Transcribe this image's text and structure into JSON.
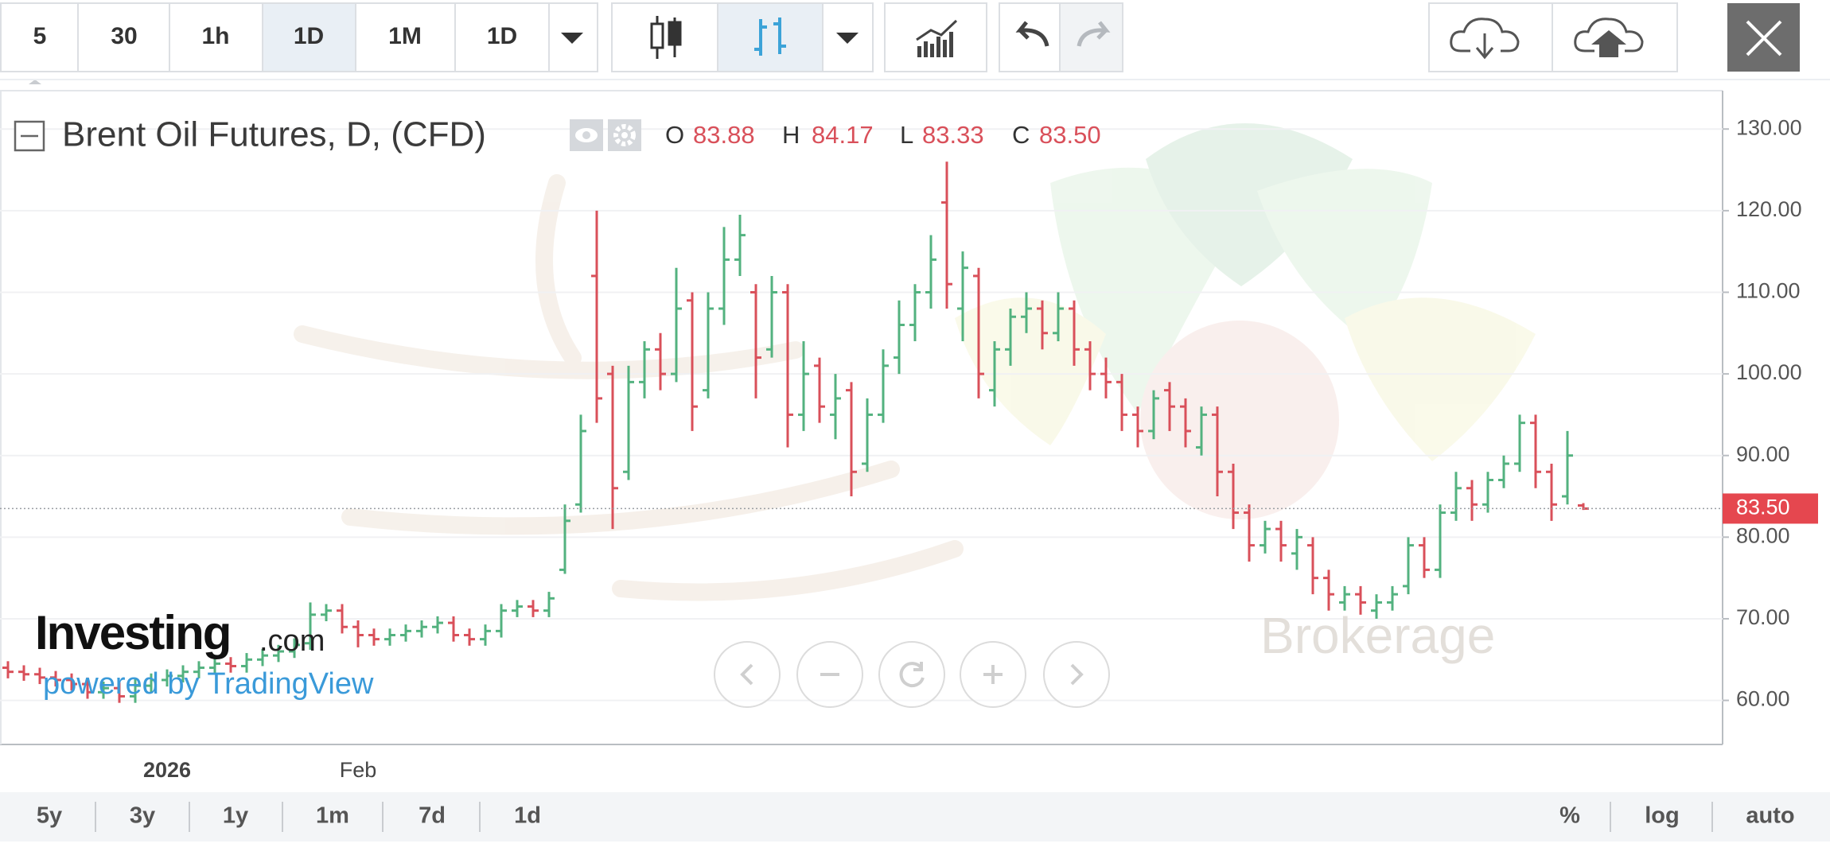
{
  "toolbar": {
    "intervals": [
      "5",
      "30",
      "1h",
      "1D",
      "1M",
      "1D"
    ]
  },
  "chart_data": {
    "type": "ohlc",
    "title": "Brent Oil Futures, D, (CFD)",
    "legend": [
      {
        "name": "O",
        "label": "83.88"
      },
      {
        "name": "H",
        "label": "84.17"
      },
      {
        "name": "L",
        "label": "83.33"
      },
      {
        "name": "C",
        "label": "83.50"
      }
    ],
    "categories": [
      null,
      null,
      null,
      null,
      null,
      null,
      null,
      null,
      null,
      null,
      "2026",
      null,
      null,
      null,
      null,
      null,
      null,
      null,
      null,
      null,
      null,
      null,
      "Feb",
      null,
      null,
      null,
      null,
      null,
      null,
      null,
      null,
      null,
      null,
      null,
      null,
      null,
      null,
      null,
      null,
      null,
      null,
      null,
      null,
      null,
      null,
      null,
      null,
      null,
      null,
      null,
      null,
      null,
      null,
      null,
      null,
      null,
      null,
      null,
      null,
      null,
      null,
      null,
      null,
      null,
      null,
      null,
      null,
      null,
      null,
      null,
      null,
      null,
      null,
      null,
      null,
      null,
      null,
      null,
      null,
      null,
      null,
      null,
      null,
      null,
      null,
      null,
      null,
      null,
      null,
      null,
      null,
      null,
      null,
      null,
      null,
      null,
      null,
      null,
      null,
      null
    ],
    "open": [
      64.0,
      63.5,
      63.2,
      62.8,
      62.5,
      62.0,
      61.0,
      61.5,
      60.5,
      61.8,
      62.5,
      63.0,
      63.5,
      64.0,
      64.5,
      64.2,
      65.0,
      65.5,
      66.0,
      67.0,
      70.5,
      71.0,
      69.0,
      68.0,
      67.5,
      68.0,
      68.5,
      69.0,
      69.5,
      68.0,
      67.5,
      68.5,
      71.0,
      71.5,
      71.0,
      76,
      84,
      112,
      100,
      88,
      99,
      103,
      100,
      109,
      98,
      108,
      114,
      110,
      103,
      110,
      95,
      101,
      95,
      98,
      89,
      95,
      102,
      106,
      110,
      121,
      108,
      112,
      98,
      103,
      107,
      108,
      105,
      108,
      103,
      100,
      99,
      95,
      93,
      98,
      96,
      91,
      95,
      88,
      83,
      79,
      81,
      78,
      79,
      75,
      72,
      73,
      71,
      72,
      74,
      79,
      76,
      83,
      86,
      84,
      87,
      89,
      94,
      88,
      85,
      83.88
    ],
    "high": [
      64.8,
      64.3,
      64.0,
      63.6,
      63.3,
      62.8,
      62.3,
      62.3,
      62.6,
      63.3,
      63.8,
      64.3,
      64.8,
      65.3,
      65.3,
      65.8,
      66.3,
      66.8,
      67.6,
      72.0,
      71.8,
      71.8,
      69.8,
      68.8,
      68.8,
      69.3,
      69.8,
      70.3,
      70.3,
      68.8,
      69.3,
      71.8,
      72.3,
      72.3,
      73.3,
      84,
      95,
      120,
      101,
      101,
      104,
      105,
      113,
      110,
      110,
      118,
      119.5,
      111,
      112,
      111,
      104,
      102,
      100,
      99,
      97,
      103,
      109,
      111,
      117,
      126,
      115,
      113,
      104,
      108,
      110,
      109,
      110,
      109,
      104,
      102,
      100,
      96,
      98,
      99,
      97,
      96,
      96,
      89,
      84,
      82,
      82,
      81,
      80,
      76,
      74,
      74,
      73,
      74,
      80,
      80,
      84,
      88,
      87,
      88,
      90,
      95,
      95,
      89,
      93,
      84.17
    ],
    "low": [
      62.7,
      62.4,
      62.0,
      61.7,
      61.2,
      60.2,
      60.2,
      59.7,
      59.7,
      61.0,
      61.7,
      62.2,
      62.7,
      63.2,
      63.4,
      63.4,
      64.2,
      64.7,
      65.2,
      66.2,
      69.7,
      68.2,
      66.5,
      66.7,
      66.7,
      67.2,
      67.7,
      68.2,
      67.2,
      66.7,
      66.7,
      67.7,
      70.2,
      70.2,
      70.2,
      75.5,
      83,
      94,
      81,
      87,
      97,
      98,
      99,
      93,
      97,
      106,
      112,
      97,
      102,
      91,
      93,
      94,
      92,
      85,
      88,
      94,
      100,
      104,
      108,
      108,
      104,
      97,
      96,
      101,
      105,
      103,
      104,
      101,
      98,
      97,
      93,
      91,
      92,
      93,
      91,
      90,
      85,
      81,
      77,
      78,
      77,
      76,
      73,
      71,
      71,
      70.5,
      70,
      71,
      73,
      75,
      75,
      82,
      82,
      83,
      86,
      88,
      86,
      82,
      84,
      83.33
    ],
    "close": [
      63.5,
      63.2,
      62.8,
      62.5,
      62.0,
      61.0,
      61.5,
      60.5,
      61.8,
      62.5,
      63.0,
      63.5,
      64.0,
      64.5,
      64.2,
      65.0,
      65.5,
      66.0,
      66.8,
      70.5,
      71.0,
      69.0,
      68.0,
      67.5,
      68.0,
      68.5,
      69.0,
      69.5,
      68.0,
      67.5,
      68.5,
      71.0,
      71.5,
      71.0,
      72.5,
      82,
      93,
      97,
      86,
      99,
      103,
      100,
      108,
      96,
      108,
      114,
      117,
      102,
      110,
      95,
      100,
      96,
      97,
      88,
      95,
      101,
      106,
      110,
      114,
      111,
      113,
      100,
      103,
      107,
      108,
      105,
      108,
      103,
      100,
      99,
      95,
      93,
      97,
      96,
      93,
      95,
      88,
      83,
      79,
      81,
      79,
      80,
      75,
      73,
      73,
      72,
      72,
      73,
      79,
      76,
      83,
      86,
      84,
      87,
      89,
      94,
      88,
      84,
      90,
      83.5
    ],
    "up_color": "#53b27f",
    "down_color": "#d9505a",
    "ylim": [
      54.6,
      134.7
    ],
    "yticks": [
      {
        "value": 60,
        "label": "60.00"
      },
      {
        "value": 70,
        "label": "70.00"
      },
      {
        "value": 80,
        "label": "80.00"
      },
      {
        "value": 90,
        "label": "90.00"
      },
      {
        "value": 100,
        "label": "100.00"
      },
      {
        "value": 110,
        "label": "110.00"
      },
      {
        "value": 120,
        "label": "120.00"
      },
      {
        "value": 130,
        "label": "130.00"
      }
    ],
    "grid": true,
    "last_price": {
      "value": 83.5,
      "label": "83.50"
    },
    "last_price_color": "#e5474f"
  },
  "watermark": {
    "brand": "Investing",
    "brand_suffix": ".com",
    "credit": "powered by TradingView",
    "broker": "Brokerage"
  },
  "bottom_bar": {
    "ranges": [
      "5y",
      "3y",
      "1y",
      "1m",
      "7d",
      "1d"
    ],
    "options": [
      "%",
      "log",
      "auto"
    ]
  }
}
